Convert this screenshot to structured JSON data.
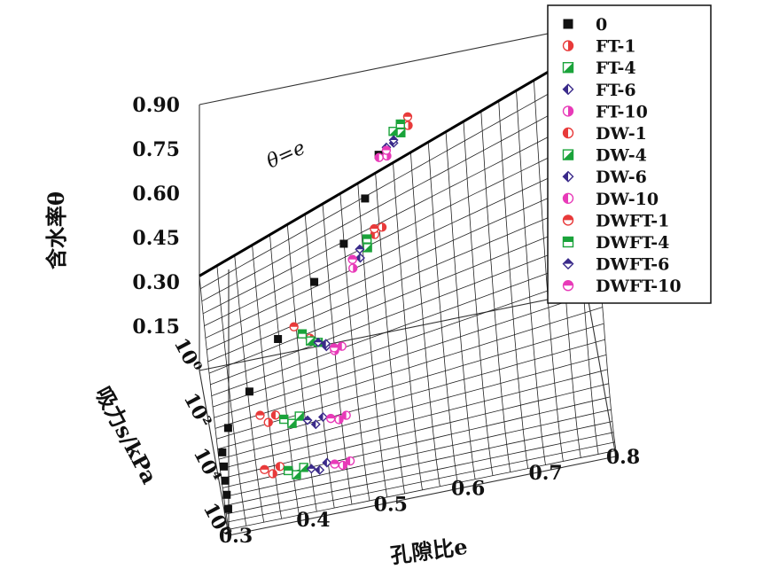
{
  "chart_data": {
    "type": "scatter",
    "projection": "3d-surface",
    "xlabel": "孔隙比e",
    "ylabel": "吸力s/kPa",
    "zlabel": "含水率θ",
    "surface_label": "θ=e",
    "x_ticks": [
      "0.3",
      "0.4",
      "0.5",
      "0.6",
      "0.7",
      "0.8"
    ],
    "y_ticks": [
      "10⁰",
      "10²",
      "10⁴",
      "10⁶"
    ],
    "z_ticks": [
      "0.15",
      "0.30",
      "0.45",
      "0.60",
      "0.75",
      "0.90"
    ],
    "xlim": [
      0.3,
      0.8
    ],
    "ylim_log10": [
      0,
      6
    ],
    "zlim": [
      0,
      0.9
    ],
    "grid": true,
    "legend_placement": "top-right",
    "series": [
      {
        "name": "0",
        "color": "#111111",
        "marker": "square-filled",
        "points": [
          [
            0.52,
            1.8,
            0.78
          ],
          [
            0.5,
            2.2,
            0.68
          ],
          [
            0.47,
            2.6,
            0.58
          ],
          [
            0.43,
            2.9,
            0.5
          ],
          [
            0.38,
            3.4,
            0.38
          ],
          [
            0.34,
            3.9,
            0.27
          ],
          [
            0.31,
            4.3,
            0.2
          ],
          [
            0.3,
            4.7,
            0.16
          ],
          [
            0.3,
            5.0,
            0.14
          ],
          [
            0.3,
            5.3,
            0.12
          ],
          [
            0.3,
            5.6,
            0.1
          ],
          [
            0.3,
            5.9,
            0.08
          ]
        ]
      },
      {
        "name": "FT-1",
        "color": "#e83a3a",
        "marker": "circle-half",
        "points": [
          [
            0.56,
            1.5,
            0.83
          ],
          [
            0.52,
            2.5,
            0.6
          ],
          [
            0.42,
            3.6,
            0.38
          ],
          [
            0.36,
            4.6,
            0.22
          ],
          [
            0.36,
            5.5,
            0.13
          ]
        ]
      },
      {
        "name": "FT-4",
        "color": "#1aa33a",
        "marker": "square-half",
        "points": [
          [
            0.55,
            1.6,
            0.82
          ],
          [
            0.5,
            2.7,
            0.56
          ],
          [
            0.43,
            3.7,
            0.37
          ],
          [
            0.39,
            4.7,
            0.21
          ],
          [
            0.39,
            5.6,
            0.12
          ]
        ]
      },
      {
        "name": "FT-6",
        "color": "#3a2a8a",
        "marker": "diamond-half",
        "points": [
          [
            0.54,
            1.7,
            0.8
          ],
          [
            0.49,
            2.8,
            0.54
          ],
          [
            0.44,
            3.8,
            0.36
          ],
          [
            0.42,
            4.8,
            0.2
          ],
          [
            0.42,
            5.6,
            0.12
          ]
        ]
      },
      {
        "name": "FT-10",
        "color": "#e83ab8",
        "marker": "circle-half",
        "points": [
          [
            0.53,
            1.9,
            0.78
          ],
          [
            0.48,
            2.9,
            0.52
          ],
          [
            0.45,
            3.9,
            0.35
          ],
          [
            0.45,
            4.8,
            0.2
          ],
          [
            0.45,
            5.6,
            0.12
          ]
        ]
      },
      {
        "name": "DW-1",
        "color": "#e83a3a",
        "marker": "circle-half-dark",
        "points": [
          [
            0.55,
            1.5,
            0.84
          ],
          [
            0.51,
            2.6,
            0.59
          ],
          [
            0.41,
            3.6,
            0.4
          ],
          [
            0.37,
            4.5,
            0.23
          ],
          [
            0.37,
            5.4,
            0.14
          ]
        ]
      },
      {
        "name": "DW-4",
        "color": "#1aa33a",
        "marker": "square-half-dark",
        "points": [
          [
            0.54,
            1.6,
            0.83
          ],
          [
            0.5,
            2.6,
            0.58
          ],
          [
            0.42,
            3.7,
            0.38
          ],
          [
            0.4,
            4.6,
            0.22
          ],
          [
            0.4,
            5.5,
            0.13
          ]
        ]
      },
      {
        "name": "DW-6",
        "color": "#3a2a8a",
        "marker": "diamond-half-dark",
        "points": [
          [
            0.53,
            1.8,
            0.8
          ],
          [
            0.49,
            2.7,
            0.56
          ],
          [
            0.44,
            3.7,
            0.36
          ],
          [
            0.43,
            4.7,
            0.21
          ],
          [
            0.43,
            5.5,
            0.13
          ]
        ]
      },
      {
        "name": "DW-10",
        "color": "#e83ab8",
        "marker": "circle-half-dark",
        "points": [
          [
            0.52,
            1.9,
            0.78
          ],
          [
            0.48,
            2.8,
            0.54
          ],
          [
            0.46,
            3.8,
            0.35
          ],
          [
            0.46,
            4.7,
            0.2
          ],
          [
            0.46,
            5.5,
            0.12
          ]
        ]
      },
      {
        "name": "DWFT-1",
        "color": "#e83a3a",
        "marker": "circle-half-top",
        "points": [
          [
            0.56,
            1.4,
            0.85
          ],
          [
            0.51,
            2.5,
            0.6
          ],
          [
            0.4,
            3.5,
            0.42
          ],
          [
            0.35,
            4.5,
            0.24
          ],
          [
            0.35,
            5.4,
            0.14
          ]
        ]
      },
      {
        "name": "DWFT-4",
        "color": "#1aa33a",
        "marker": "square-half-top",
        "points": [
          [
            0.55,
            1.5,
            0.84
          ],
          [
            0.5,
            2.6,
            0.58
          ],
          [
            0.41,
            3.6,
            0.4
          ],
          [
            0.38,
            4.6,
            0.22
          ],
          [
            0.38,
            5.5,
            0.13
          ]
        ]
      },
      {
        "name": "DWFT-6",
        "color": "#3a2a8a",
        "marker": "diamond-half-top",
        "points": [
          [
            0.54,
            1.7,
            0.81
          ],
          [
            0.49,
            2.7,
            0.56
          ],
          [
            0.43,
            3.7,
            0.37
          ],
          [
            0.41,
            4.7,
            0.21
          ],
          [
            0.41,
            5.5,
            0.12
          ]
        ]
      },
      {
        "name": "DWFT-10",
        "color": "#e83ab8",
        "marker": "circle-half-top",
        "points": [
          [
            0.53,
            1.8,
            0.79
          ],
          [
            0.48,
            2.8,
            0.54
          ],
          [
            0.45,
            3.8,
            0.35
          ],
          [
            0.44,
            4.7,
            0.2
          ],
          [
            0.44,
            5.5,
            0.12
          ]
        ]
      }
    ]
  }
}
